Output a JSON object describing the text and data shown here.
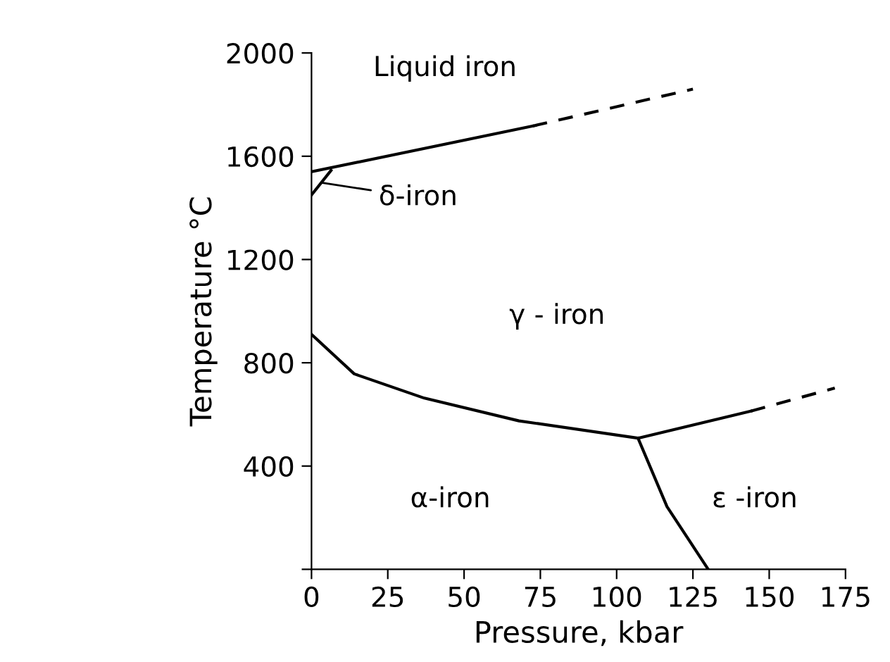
{
  "chart_data": {
    "type": "line",
    "xlabel": "Pressure, kbar",
    "ylabel": "Temperature °C",
    "xlim": [
      0,
      175
    ],
    "ylim": [
      0,
      2000
    ],
    "xticks": [
      {
        "value": 0,
        "label": "0"
      },
      25,
      50,
      75,
      100,
      125,
      150,
      175
    ],
    "yticks": [
      {
        "value": 0,
        "label": null
      },
      400,
      800,
      1200,
      1600,
      2000
    ],
    "grid": false,
    "marker": "none",
    "series": [
      {
        "color": "#000000",
        "line_style": "solid",
        "x": [
          0,
          72.5
        ],
        "values": [
          1540,
          1717
        ]
      },
      {
        "color": "#000000",
        "line_style": "dashed",
        "x": [
          72.5,
          125
        ],
        "values": [
          1717,
          1860
        ]
      },
      {
        "color": "#000000",
        "line_style": "solid",
        "x": [
          0,
          6.4
        ],
        "values": [
          1450,
          1545
        ]
      },
      {
        "color": "#000000",
        "line_style": "solid",
        "x": [
          0,
          14,
          37,
          68,
          107,
          144
        ],
        "values": [
          910,
          757,
          663,
          575,
          508,
          613
        ]
      },
      {
        "color": "#000000",
        "line_style": "dashed",
        "x": [
          144,
          171.5
        ],
        "values": [
          613,
          702
        ]
      },
      {
        "color": "#000000",
        "line_style": "solid",
        "x": [
          107,
          116.5,
          130
        ],
        "values": [
          508,
          243,
          0
        ]
      }
    ],
    "annotations": [
      "Liquid iron",
      {
        "text": "δ-iron",
        "x": 2,
        "y": 1500
      },
      "γ - iron",
      "α-iron",
      "ε -iron"
    ]
  }
}
